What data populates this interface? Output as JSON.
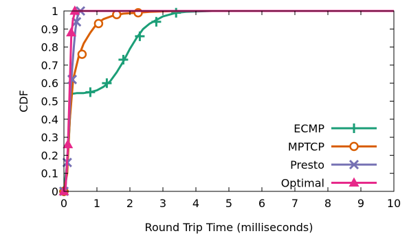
{
  "chart_data": {
    "type": "line",
    "title": "",
    "xlabel": "Round Trip Time (milliseconds)",
    "ylabel": "CDF",
    "xlim": [
      0,
      10
    ],
    "ylim": [
      0,
      1
    ],
    "xticks": [
      "0",
      "1",
      "2",
      "3",
      "4",
      "5",
      "6",
      "7",
      "8",
      "9",
      "10"
    ],
    "yticks": [
      "0",
      "0.1",
      "0.2",
      "0.3",
      "0.4",
      "0.5",
      "0.6",
      "0.7",
      "0.8",
      "0.9",
      "1"
    ],
    "grid": false,
    "legend_position": "bottom-right",
    "series": [
      {
        "name": "ECMP",
        "color": "#1b9e77",
        "marker": "plus",
        "curve": [
          [
            0,
            0
          ],
          [
            0.12,
            0.2
          ],
          [
            0.22,
            0.54
          ],
          [
            0.4,
            0.545
          ],
          [
            0.6,
            0.545
          ],
          [
            0.8,
            0.55
          ],
          [
            1.0,
            0.56
          ],
          [
            1.2,
            0.58
          ],
          [
            1.4,
            0.61
          ],
          [
            1.6,
            0.66
          ],
          [
            1.8,
            0.72
          ],
          [
            2.0,
            0.79
          ],
          [
            2.2,
            0.85
          ],
          [
            2.4,
            0.9
          ],
          [
            2.6,
            0.93
          ],
          [
            2.8,
            0.95
          ],
          [
            3.0,
            0.97
          ],
          [
            3.2,
            0.98
          ],
          [
            3.4,
            0.99
          ],
          [
            3.7,
            0.995
          ],
          [
            4.5,
            1
          ],
          [
            10,
            1
          ]
        ],
        "markers": [
          [
            0,
            0
          ],
          [
            0.8,
            0.55
          ],
          [
            1.3,
            0.6
          ],
          [
            1.8,
            0.73
          ],
          [
            2.3,
            0.86
          ],
          [
            2.8,
            0.94
          ],
          [
            3.4,
            0.99
          ]
        ]
      },
      {
        "name": "MPTCP",
        "color": "#d95f02",
        "marker": "circle",
        "curve": [
          [
            0,
            0
          ],
          [
            0.1,
            0.1
          ],
          [
            0.18,
            0.4
          ],
          [
            0.28,
            0.62
          ],
          [
            0.45,
            0.75
          ],
          [
            0.6,
            0.82
          ],
          [
            0.8,
            0.88
          ],
          [
            1.0,
            0.93
          ],
          [
            1.2,
            0.955
          ],
          [
            1.5,
            0.975
          ],
          [
            1.8,
            0.985
          ],
          [
            2.2,
            0.99
          ],
          [
            2.6,
            0.995
          ],
          [
            3.5,
            1
          ],
          [
            10,
            1
          ]
        ],
        "markers": [
          [
            0,
            0
          ],
          [
            0.55,
            0.76
          ],
          [
            1.05,
            0.93
          ],
          [
            1.6,
            0.98
          ],
          [
            2.25,
            0.99
          ]
        ]
      },
      {
        "name": "Presto",
        "color": "#7570b3",
        "marker": "x",
        "curve": [
          [
            0,
            0
          ],
          [
            0.05,
            0.02
          ],
          [
            0.1,
            0.16
          ],
          [
            0.15,
            0.35
          ],
          [
            0.2,
            0.55
          ],
          [
            0.25,
            0.68
          ],
          [
            0.3,
            0.8
          ],
          [
            0.35,
            0.9
          ],
          [
            0.4,
            0.96
          ],
          [
            0.45,
            0.99
          ],
          [
            0.5,
            1
          ],
          [
            10,
            1
          ]
        ],
        "markers": [
          [
            0,
            0
          ],
          [
            0.1,
            0.16
          ],
          [
            0.25,
            0.62
          ],
          [
            0.38,
            0.94
          ],
          [
            0.5,
            1
          ]
        ]
      },
      {
        "name": "Optimal",
        "color": "#e7298a",
        "marker": "triangle",
        "curve": [
          [
            0,
            0
          ],
          [
            0.05,
            0.02
          ],
          [
            0.12,
            0.25
          ],
          [
            0.18,
            0.6
          ],
          [
            0.22,
            0.85
          ],
          [
            0.27,
            0.95
          ],
          [
            0.33,
            0.99
          ],
          [
            0.36,
            1
          ],
          [
            10,
            1
          ]
        ],
        "markers": [
          [
            0,
            0
          ],
          [
            0.12,
            0.26
          ],
          [
            0.22,
            0.88
          ],
          [
            0.33,
            1
          ]
        ]
      }
    ]
  }
}
